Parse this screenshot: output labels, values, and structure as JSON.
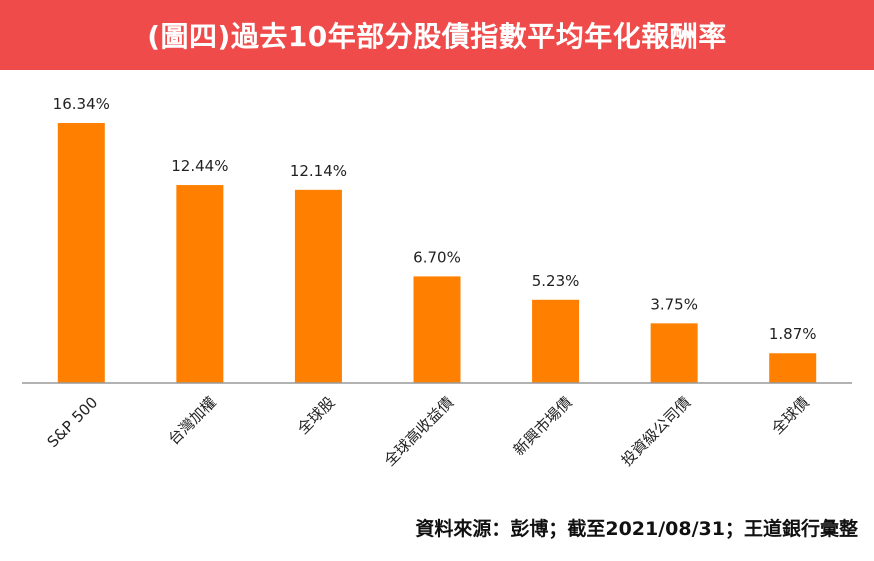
{
  "header": {
    "title": "(圖四)過去10年部分股債指數平均年化報酬率"
  },
  "footer": {
    "source": "資料來源：彭博；截至2021/08/31；王道銀行彙整"
  },
  "colors": {
    "banner": "#f04b4b",
    "bar": "#ff8000",
    "axis": "#999999"
  },
  "chart_data": {
    "type": "bar",
    "title": "(圖四)過去10年部分股債指數平均年化報酬率",
    "categories": [
      "S&P 500",
      "台灣加權",
      "全球股",
      "全球高收益債",
      "新興市場債",
      "投資級公司債",
      "全球債"
    ],
    "values": [
      16.34,
      12.44,
      12.14,
      6.7,
      5.23,
      3.75,
      1.87
    ],
    "data_labels": [
      "16.34%",
      "12.44%",
      "12.14%",
      "6.70%",
      "5.23%",
      "3.75%",
      "1.87%"
    ],
    "ylim": [
      0,
      16.34
    ],
    "grid": false,
    "legend": "none",
    "xlabel": "",
    "ylabel": ""
  }
}
